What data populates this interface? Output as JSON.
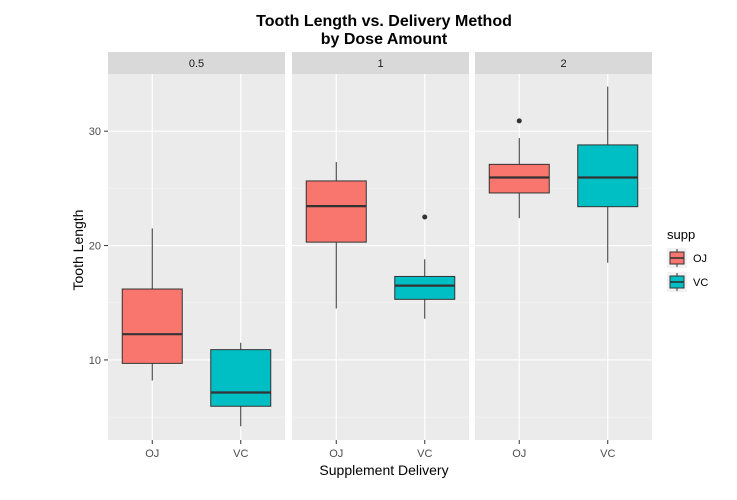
{
  "chart_data": {
    "type": "boxplot",
    "title": "Tooth Length vs. Delivery Method",
    "subtitle": "by Dose Amount",
    "xlabel": "Supplement Delivery",
    "ylabel": "Tooth Length",
    "ylim": [
      3,
      35
    ],
    "yticks": [
      10,
      20,
      30
    ],
    "grid": true,
    "categories": [
      "OJ",
      "VC"
    ],
    "legend": {
      "title": "supp",
      "position": "right",
      "entries": [
        {
          "label": "OJ",
          "color": "#F8766D"
        },
        {
          "label": "VC",
          "color": "#00BFC4"
        }
      ]
    },
    "facets": [
      {
        "label": "0.5",
        "boxes": [
          {
            "category": "OJ",
            "min": 8.2,
            "q1": 9.7,
            "median": 12.25,
            "q3": 16.2,
            "max": 21.5,
            "outliers": []
          },
          {
            "category": "VC",
            "min": 4.2,
            "q1": 5.95,
            "median": 7.15,
            "q3": 10.9,
            "max": 11.5,
            "outliers": []
          }
        ]
      },
      {
        "label": "1",
        "boxes": [
          {
            "category": "OJ",
            "min": 14.5,
            "q1": 20.3,
            "median": 23.45,
            "q3": 25.65,
            "max": 27.3,
            "outliers": []
          },
          {
            "category": "VC",
            "min": 13.6,
            "q1": 15.3,
            "median": 16.5,
            "q3": 17.3,
            "max": 18.8,
            "outliers": [
              22.5
            ]
          }
        ]
      },
      {
        "label": "2",
        "boxes": [
          {
            "category": "OJ",
            "min": 22.4,
            "q1": 24.6,
            "median": 25.95,
            "q3": 27.1,
            "max": 29.4,
            "outliers": [
              30.9
            ]
          },
          {
            "category": "VC",
            "min": 18.5,
            "q1": 23.4,
            "median": 25.95,
            "q3": 28.8,
            "max": 33.9,
            "outliers": []
          }
        ]
      }
    ]
  }
}
